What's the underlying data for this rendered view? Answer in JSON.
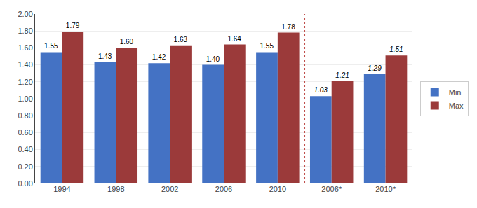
{
  "chart_data": {
    "type": "bar",
    "categories": [
      "1994",
      "1998",
      "2002",
      "2006",
      "2010",
      "2006*",
      "2010*"
    ],
    "series": [
      {
        "name": "Min",
        "color": "#4472C4",
        "values": [
          1.55,
          1.43,
          1.42,
          1.4,
          1.55,
          1.03,
          1.29
        ],
        "value_labels": [
          "1.55",
          "1.43",
          "1.42",
          "1.40",
          "1.55",
          "1.03",
          "1.29"
        ]
      },
      {
        "name": "Max",
        "color": "#9B3A3A",
        "values": [
          1.79,
          1.6,
          1.63,
          1.64,
          1.78,
          1.21,
          1.51
        ],
        "value_labels": [
          "1.79",
          "1.60",
          "1.63",
          "1.64",
          "1.78",
          "1.21",
          "1.51"
        ]
      }
    ],
    "ylim": [
      0.0,
      2.0
    ],
    "yticks": [
      {
        "value": 0.0,
        "label": "0.00"
      },
      {
        "value": 0.2,
        "label": "0.20"
      },
      {
        "value": 0.4,
        "label": "0.40"
      },
      {
        "value": 0.6,
        "label": "0.60"
      },
      {
        "value": 0.8,
        "label": "0.80"
      },
      {
        "value": 1.0,
        "label": "1.00"
      },
      {
        "value": 1.2,
        "label": "1.20"
      },
      {
        "value": 1.4,
        "label": "1.40"
      },
      {
        "value": 1.6,
        "label": "1.60"
      },
      {
        "value": 1.8,
        "label": "1.80"
      },
      {
        "value": 2.0,
        "label": "2.00"
      }
    ],
    "grid": true,
    "legend": "right",
    "data_labels": true
  }
}
